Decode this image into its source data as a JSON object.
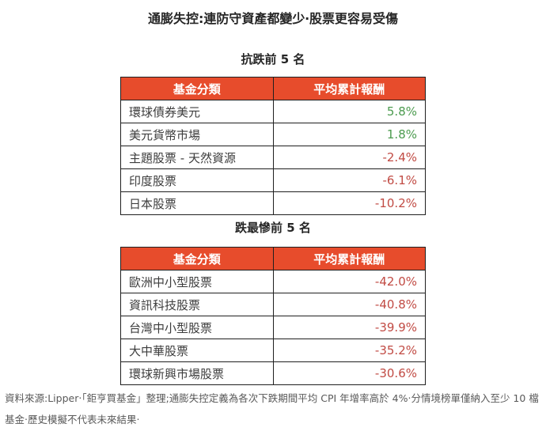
{
  "title": "通膨失控:連防守資產都變少‧股票更容易受傷",
  "colors": {
    "header_bg": "#e74c2c",
    "positive": "#4c9b4f",
    "negative": "#c14b44"
  },
  "tables": [
    {
      "subtitle": "抗跌前 5 名",
      "columns": {
        "category": "基金分類",
        "return": "平均累計報酬"
      },
      "rows": [
        {
          "category": "環球債券美元",
          "value": "5.8%",
          "sign": "positive"
        },
        {
          "category": "美元貨幣市場",
          "value": "1.8%",
          "sign": "positive"
        },
        {
          "category": "主題股票 - 天然資源",
          "value": "-2.4%",
          "sign": "negative"
        },
        {
          "category": "印度股票",
          "value": "-6.1%",
          "sign": "negative"
        },
        {
          "category": "日本股票",
          "value": "-10.2%",
          "sign": "negative"
        }
      ]
    },
    {
      "subtitle": "跌最慘前 5 名",
      "columns": {
        "category": "基金分類",
        "return": "平均累計報酬"
      },
      "rows": [
        {
          "category": "歐洲中小型股票",
          "value": "-42.0%",
          "sign": "negative"
        },
        {
          "category": "資訊科技股票",
          "value": "-40.8%",
          "sign": "negative"
        },
        {
          "category": "台灣中小型股票",
          "value": "-39.9%",
          "sign": "negative"
        },
        {
          "category": "大中華股票",
          "value": "-35.2%",
          "sign": "negative"
        },
        {
          "category": "環球新興市場股票",
          "value": "-30.6%",
          "sign": "negative"
        }
      ]
    }
  ],
  "footnote": "資料來源:Lipper‧「鉅亨買基金」整理;通膨失控定義為各次下跌期間平均 CPI 年增率高於 4%‧分情境榜單僅納入至少 10 檔基金‧歷史模擬不代表未來結果‧",
  "chart_data": [
    {
      "type": "table",
      "title": "抗跌前 5 名",
      "columns": [
        "基金分類",
        "平均累計報酬"
      ],
      "rows": [
        [
          "環球債券美元",
          5.8
        ],
        [
          "美元貨幣市場",
          1.8
        ],
        [
          "主題股票 - 天然資源",
          -2.4
        ],
        [
          "印度股票",
          -6.1
        ],
        [
          "日本股票",
          -10.2
        ]
      ],
      "value_unit": "%"
    },
    {
      "type": "table",
      "title": "跌最慘前 5 名",
      "columns": [
        "基金分類",
        "平均累計報酬"
      ],
      "rows": [
        [
          "歐洲中小型股票",
          -42.0
        ],
        [
          "資訊科技股票",
          -40.8
        ],
        [
          "台灣中小型股票",
          -39.9
        ],
        [
          "大中華股票",
          -35.2
        ],
        [
          "環球新興市場股票",
          -30.6
        ]
      ],
      "value_unit": "%"
    }
  ]
}
